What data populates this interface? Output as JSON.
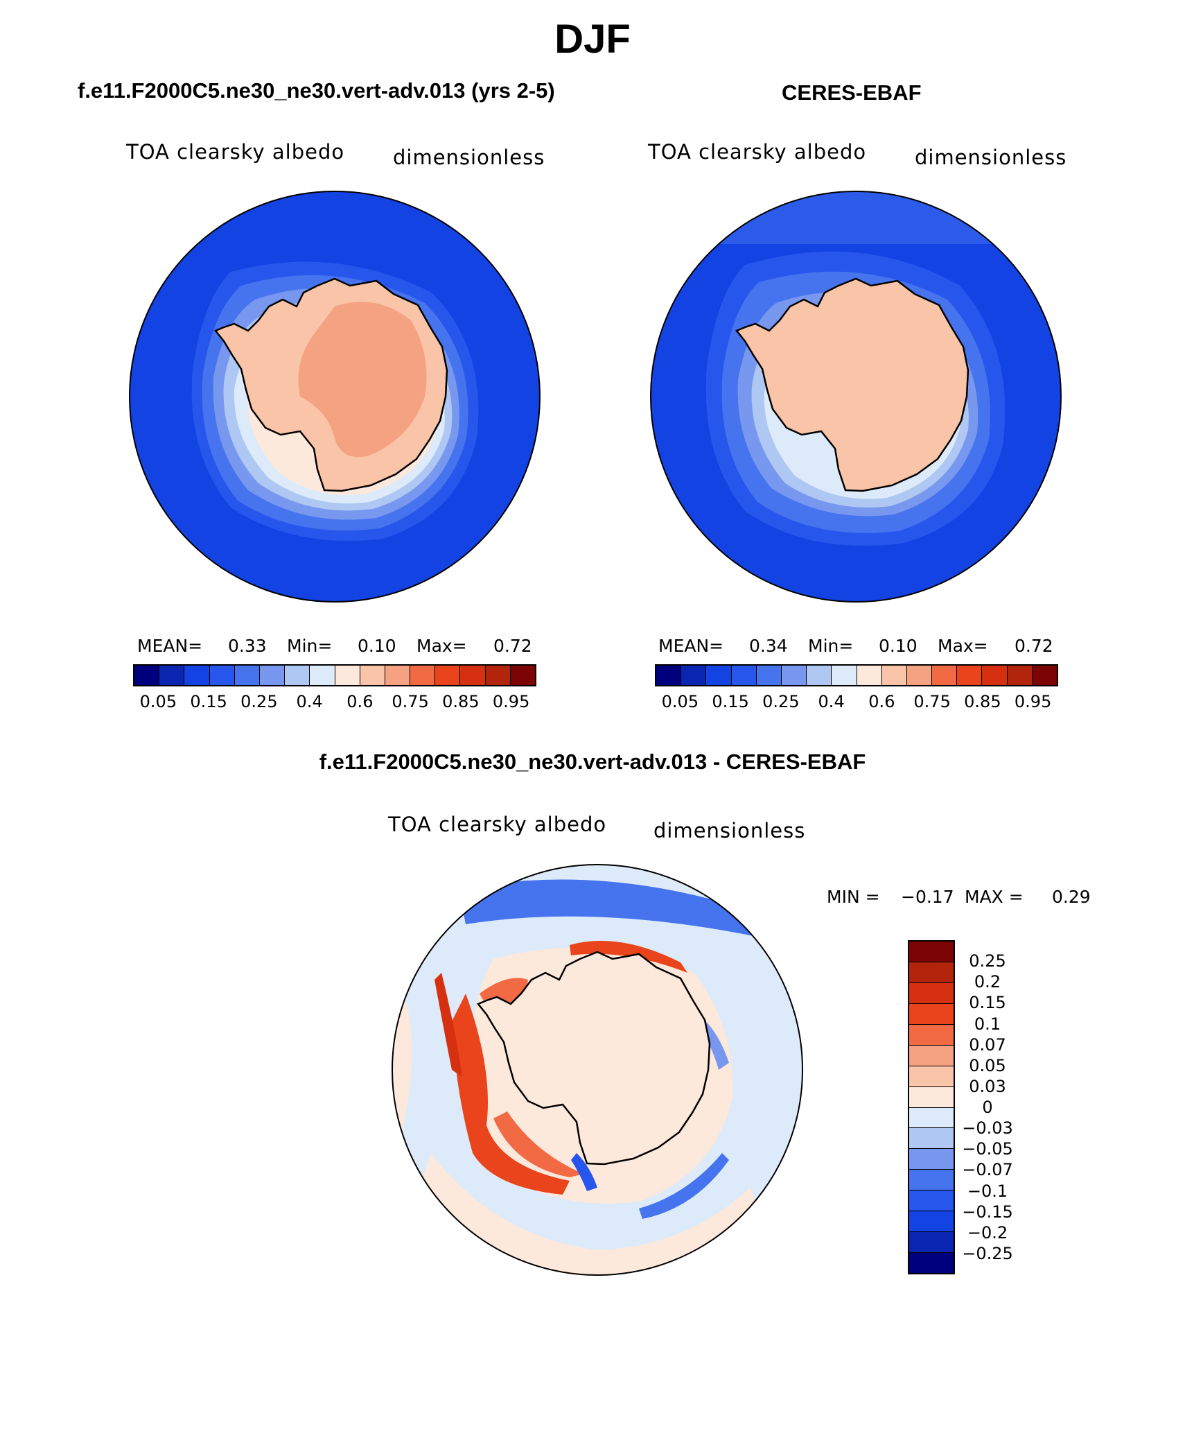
{
  "figure": {
    "title": "DJF"
  },
  "panels": [
    {
      "title": "f.e11.F2000C5.ne30_ne30.vert-adv.013 (yrs 2-5)",
      "variable": "TOA clearsky albedo",
      "units": "dimensionless",
      "stats": {
        "mean_label": "MEAN=",
        "mean": "0.33",
        "min_label": "Min=",
        "min": "0.10",
        "max_label": "Max=",
        "max": "0.72"
      },
      "colorbar_labels": [
        "0.05",
        "0.15",
        "0.25",
        "0.4",
        "0.6",
        "0.75",
        "0.85",
        "0.95"
      ]
    },
    {
      "title": "CERES-EBAF",
      "variable": "TOA clearsky albedo",
      "units": "dimensionless",
      "stats": {
        "mean_label": "MEAN=",
        "mean": "0.34",
        "min_label": "Min=",
        "min": "0.10",
        "max_label": "Max=",
        "max": "0.72"
      },
      "colorbar_labels": [
        "0.05",
        "0.15",
        "0.25",
        "0.4",
        "0.6",
        "0.75",
        "0.85",
        "0.95"
      ]
    }
  ],
  "difference": {
    "title": "f.e11.F2000C5.ne30_ne30.vert-adv.013 - CERES-EBAF",
    "variable": "TOA clearsky albedo",
    "units": "dimensionless",
    "stats": {
      "min_label": "MIN =",
      "min": "−0.17",
      "max_label": "MAX =",
      "max": "0.29"
    },
    "colorbar_labels": [
      "0.25",
      "0.2",
      "0.15",
      "0.1",
      "0.07",
      "0.05",
      "0.03",
      "0",
      "−0.03",
      "−0.05",
      "−0.07",
      "−0.1",
      "−0.15",
      "−0.2",
      "−0.25"
    ]
  },
  "colors": {
    "abs_scale": [
      "#00007e",
      "#0a25b2",
      "#1443e4",
      "#2756ec",
      "#4673ee",
      "#7898ef",
      "#aec8f3",
      "#dceaf9",
      "#fde8dc",
      "#f9c4a8",
      "#f5a283",
      "#f26a44",
      "#e9441b",
      "#d5300f",
      "#b2240b",
      "#7d0404"
    ],
    "diff_scale": [
      "#7d0404",
      "#b2240b",
      "#d5300f",
      "#e9441b",
      "#f26a44",
      "#f5a283",
      "#f9c4a8",
      "#fde8dc",
      "#dceaf9",
      "#aec8f3",
      "#7898ef",
      "#4673ee",
      "#2756ec",
      "#1443e4",
      "#0a25b2",
      "#00007e"
    ],
    "ocean": "#1443e4",
    "coast_outline": "#000000"
  }
}
